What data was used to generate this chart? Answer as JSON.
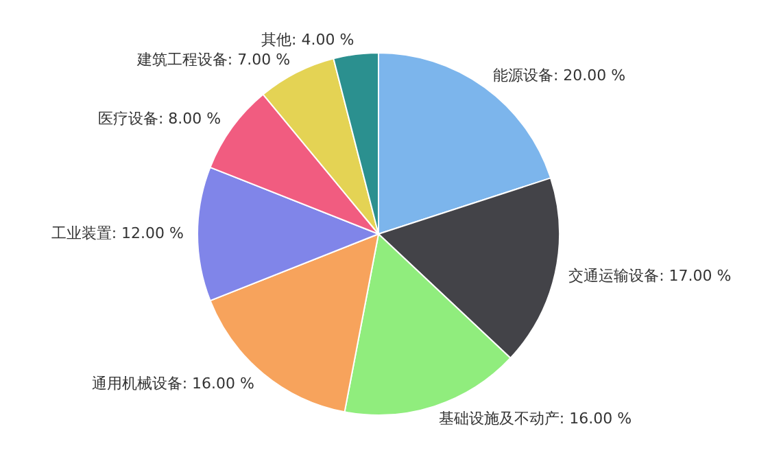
{
  "chart_data": {
    "type": "pie",
    "categories": [
      "能源设备",
      "交通运输设备",
      "基础设施及不动产",
      "通用机械设备",
      "工业装置",
      "医疗设备",
      "建筑工程设备",
      "其他"
    ],
    "values": [
      20,
      17,
      16,
      16,
      12,
      8,
      7,
      4
    ],
    "value_labels": [
      "20.00 %",
      "17.00 %",
      "16.00 %",
      "16.00 %",
      "12.00 %",
      "8.00 %",
      "7.00 %",
      "4.00 %"
    ],
    "colors": [
      "#7cb5ec",
      "#434348",
      "#90ed7d",
      "#f7a35c",
      "#8085e9",
      "#f15c80",
      "#e4d354",
      "#2b908f"
    ]
  }
}
